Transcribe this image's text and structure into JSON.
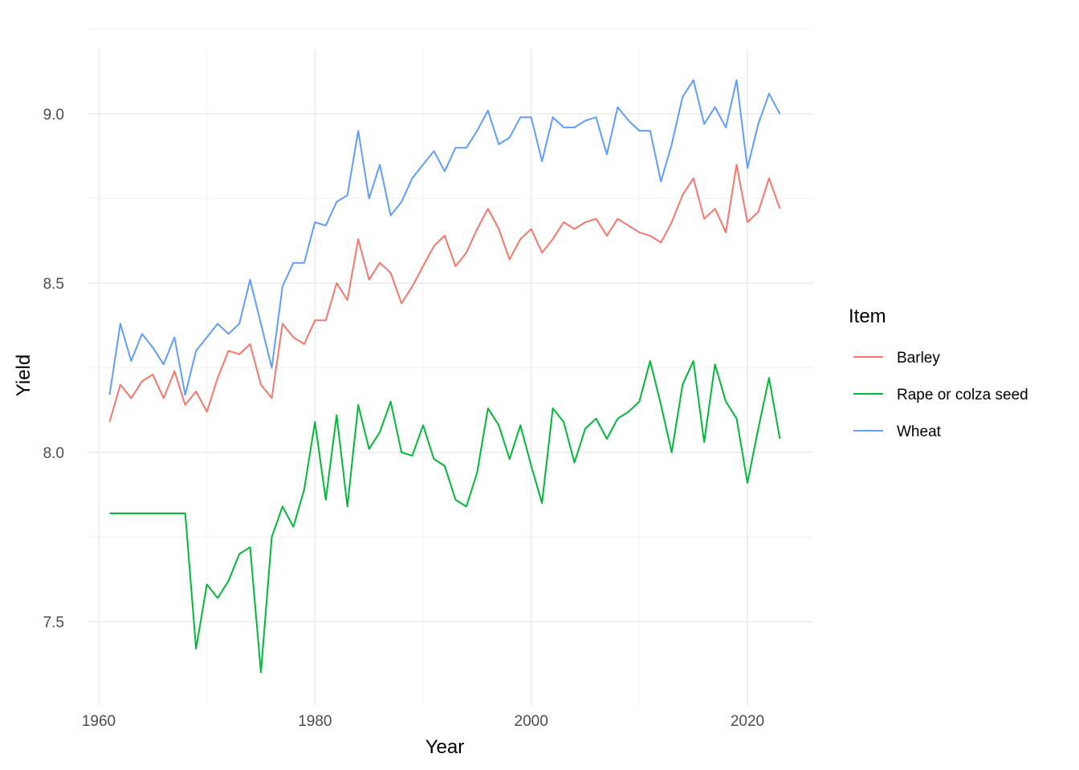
{
  "chart_data": {
    "type": "line",
    "xlabel": "Year",
    "ylabel": "Yield",
    "xlim": [
      1959,
      2026
    ],
    "ylim": [
      7.3,
      9.2
    ],
    "x_ticks": [
      1960,
      1980,
      2000,
      2020
    ],
    "x_tick_labels": [
      "1960",
      "1980",
      "2000",
      "2020"
    ],
    "y_ticks": [
      7.5,
      8.0,
      8.5,
      9.0
    ],
    "y_tick_labels": [
      "7.5",
      "8.0",
      "8.5",
      "9.0"
    ],
    "grid": true,
    "legend": {
      "title": "Item",
      "position": "right"
    },
    "x": [
      1961,
      1962,
      1963,
      1964,
      1965,
      1966,
      1967,
      1968,
      1969,
      1970,
      1971,
      1972,
      1973,
      1974,
      1975,
      1976,
      1977,
      1978,
      1979,
      1980,
      1981,
      1982,
      1983,
      1984,
      1985,
      1986,
      1987,
      1988,
      1989,
      1990,
      1991,
      1992,
      1993,
      1994,
      1995,
      1996,
      1997,
      1998,
      1999,
      2000,
      2001,
      2002,
      2003,
      2004,
      2005,
      2006,
      2007,
      2008,
      2009,
      2010,
      2011,
      2012,
      2013,
      2014,
      2015,
      2016,
      2017,
      2018,
      2019,
      2020,
      2021,
      2022,
      2023
    ],
    "series": [
      {
        "name": "Barley",
        "color": "#F8766D",
        "values": [
          8.09,
          8.2,
          8.16,
          8.21,
          8.23,
          8.16,
          8.24,
          8.14,
          8.18,
          8.12,
          8.22,
          8.3,
          8.29,
          8.32,
          8.2,
          8.16,
          8.38,
          8.34,
          8.32,
          8.39,
          8.39,
          8.5,
          8.45,
          8.63,
          8.51,
          8.56,
          8.53,
          8.44,
          8.49,
          8.55,
          8.61,
          8.64,
          8.55,
          8.59,
          8.66,
          8.72,
          8.66,
          8.57,
          8.63,
          8.66,
          8.59,
          8.63,
          8.68,
          8.66,
          8.68,
          8.69,
          8.64,
          8.69,
          8.67,
          8.65,
          8.64,
          8.62,
          8.68,
          8.76,
          8.81,
          8.69,
          8.72,
          8.65,
          8.85,
          8.68,
          8.71,
          8.81,
          8.72
        ]
      },
      {
        "name": "Rape or colza seed",
        "color": "#00BA38",
        "values": [
          7.82,
          7.82,
          7.82,
          7.82,
          7.82,
          7.82,
          7.82,
          7.82,
          7.42,
          7.61,
          7.57,
          7.62,
          7.7,
          7.72,
          7.35,
          7.75,
          7.84,
          7.78,
          7.89,
          8.09,
          7.86,
          8.11,
          7.84,
          8.14,
          8.01,
          8.06,
          8.15,
          8.0,
          7.99,
          8.08,
          7.98,
          7.96,
          7.86,
          7.84,
          7.94,
          8.13,
          8.08,
          7.98,
          8.08,
          7.96,
          7.85,
          8.13,
          8.09,
          7.97,
          8.07,
          8.1,
          8.04,
          8.1,
          8.12,
          8.15,
          8.27,
          8.14,
          8.0,
          8.2,
          8.27,
          8.03,
          8.26,
          8.15,
          8.1,
          7.91,
          8.07,
          8.22,
          8.04
        ]
      },
      {
        "name": "Wheat",
        "color": "#619CFF",
        "values": [
          8.17,
          8.38,
          8.27,
          8.35,
          8.31,
          8.26,
          8.34,
          8.17,
          8.3,
          8.34,
          8.38,
          8.35,
          8.38,
          8.51,
          8.38,
          8.25,
          8.49,
          8.56,
          8.56,
          8.68,
          8.67,
          8.74,
          8.76,
          8.95,
          8.75,
          8.85,
          8.7,
          8.74,
          8.81,
          8.85,
          8.89,
          8.83,
          8.9,
          8.9,
          8.95,
          9.01,
          8.91,
          8.93,
          8.99,
          8.99,
          8.86,
          8.99,
          8.96,
          8.96,
          8.98,
          8.99,
          8.88,
          9.02,
          8.98,
          8.95,
          8.95,
          8.8,
          8.91,
          9.05,
          9.1,
          8.97,
          9.02,
          8.96,
          9.1,
          8.84,
          8.97,
          9.06,
          9.0
        ]
      }
    ]
  }
}
